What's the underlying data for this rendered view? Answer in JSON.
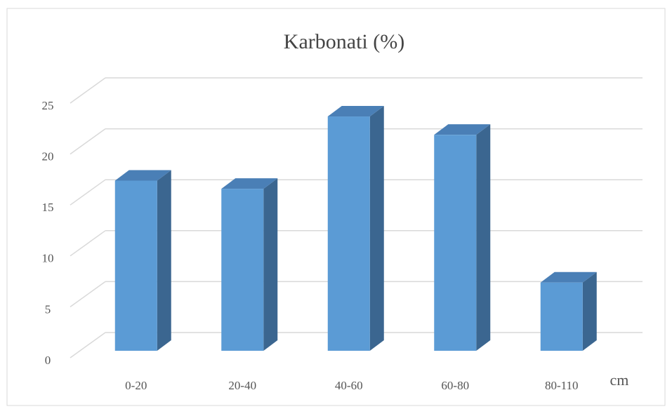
{
  "chart_data": {
    "type": "bar",
    "title": "Karbonati (%)",
    "x_label": "cm",
    "categories": [
      "0-20",
      "20-40",
      "40-60",
      "60-80",
      "80-110"
    ],
    "values": [
      16.7,
      15.9,
      23.0,
      21.2,
      6.7
    ],
    "color": "#5b9bd5",
    "ylim": [
      0,
      25
    ],
    "yticks": [
      0,
      5,
      10,
      15,
      20,
      25
    ],
    "grid": true
  }
}
